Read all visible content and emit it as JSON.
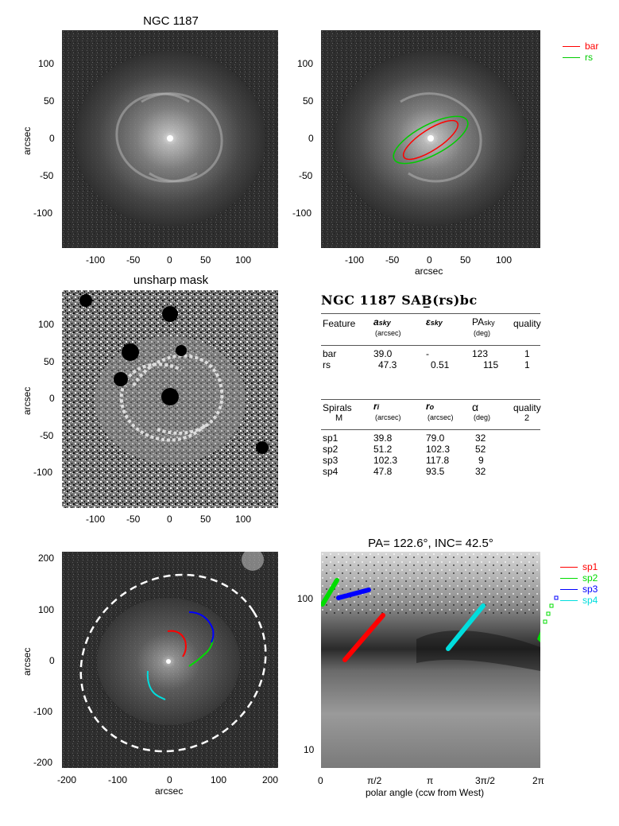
{
  "panel1": {
    "title": "NGC 1187",
    "ylabel": "arcsec",
    "yticks": [
      "100",
      "50",
      "0",
      "-50",
      "-100"
    ],
    "xticks": [
      "-100",
      "-50",
      "0",
      "50",
      "100"
    ]
  },
  "panel2": {
    "xlabel": "arcsec",
    "yticks": [
      "100",
      "50",
      "0",
      "-50",
      "-100"
    ],
    "xticks": [
      "-100",
      "-50",
      "0",
      "50",
      "100"
    ],
    "legend": [
      {
        "label": "bar",
        "color": "#ff0000"
      },
      {
        "label": "rs",
        "color": "#00cc00"
      }
    ]
  },
  "panel3": {
    "title": "unsharp mask",
    "ylabel": "arcsec",
    "yticks": [
      "100",
      "50",
      "0",
      "-50",
      "-100"
    ],
    "xticks": [
      "-100",
      "-50",
      "0",
      "50",
      "100"
    ]
  },
  "table": {
    "title": "NGC 1187  SAB̲(rs)bc",
    "header1": {
      "c1": "Feature",
      "c2": "a",
      "c2sub": "sky",
      "c2unit": "(arcsec)",
      "c3": "ε",
      "c3sub": "sky",
      "c4": "PA",
      "c4sub": "sky",
      "c4unit": "(deg)",
      "c5": "quality"
    },
    "rows1": [
      {
        "name": "bar",
        "a": "39.0",
        "e": "-",
        "pa": "123",
        "q": "1"
      },
      {
        "name": "rs",
        "a": "47.3",
        "e": "0.51",
        "pa": "115",
        "q": "1"
      }
    ],
    "header2": {
      "c1": "Spirals",
      "c1b": "M",
      "c2": "r",
      "c2sub": "i",
      "c2unit": "(arcsec)",
      "c3": "r",
      "c3sub": "o",
      "c3unit": "(arcsec)",
      "c4": "α",
      "c4unit": "(deg)",
      "c5": "quality",
      "c5b": "2"
    },
    "rows2": [
      {
        "name": "sp1",
        "ri": "39.8",
        "ro": "79.0",
        "alpha": "32"
      },
      {
        "name": "sp2",
        "ri": "51.2",
        "ro": "102.3",
        "alpha": "52"
      },
      {
        "name": "sp3",
        "ri": "102.3",
        "ro": "117.8",
        "alpha": "9"
      },
      {
        "name": "sp4",
        "ri": "47.8",
        "ro": "93.5",
        "alpha": "32"
      }
    ]
  },
  "panel4": {
    "xlabel": "arcsec",
    "ylabel": "arcsec",
    "yticks": [
      "200",
      "100",
      "0",
      "-100",
      "-200"
    ],
    "xticks": [
      "-200",
      "-100",
      "0",
      "100",
      "200"
    ]
  },
  "panel5": {
    "title": "PA= 122.6°, INC=  42.5°",
    "xlabel": "polar angle (ccw from West)",
    "yticks": [
      "100",
      "10"
    ],
    "xticks": [
      "0",
      "π/2",
      "π",
      "3π/2",
      "2π"
    ],
    "legend": [
      {
        "label": "sp1",
        "color": "#ff0000"
      },
      {
        "label": "sp2",
        "color": "#00dd00"
      },
      {
        "label": "sp3",
        "color": "#0000ff"
      },
      {
        "label": "sp4",
        "color": "#00dddd"
      }
    ]
  }
}
